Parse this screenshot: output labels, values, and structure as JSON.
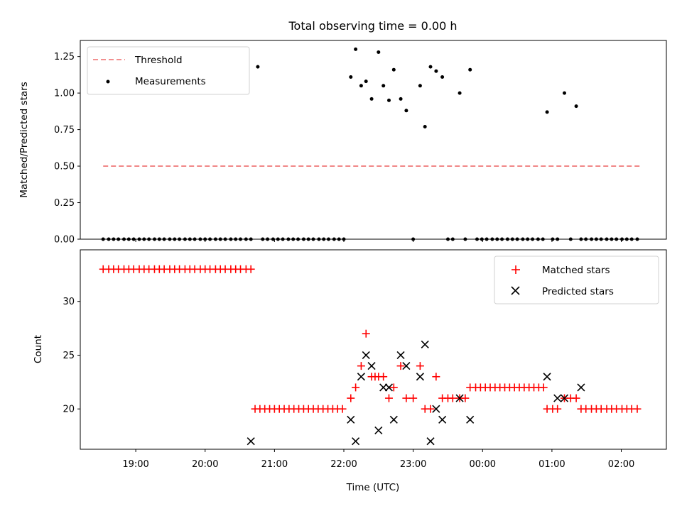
{
  "chart_data": [
    {
      "type": "scatter",
      "title": "Total observing time = 0.00 h",
      "xlabel": "",
      "ylabel": "Matched/Predicted stars",
      "xlim": [
        18.2,
        26.65
      ],
      "ylim": [
        0,
        1.36
      ],
      "yticks": [
        0,
        0.25,
        0.5,
        0.75,
        1.0,
        1.25
      ],
      "ytick_labels": [
        "0.00",
        "0.25",
        "0.50",
        "0.75",
        "1.00",
        "1.25"
      ],
      "xticks": [
        19,
        20,
        21,
        22,
        23,
        24,
        25,
        26
      ],
      "legend": {
        "position": "top-left",
        "entries": [
          {
            "label": "Threshold",
            "marker": "dashed-line",
            "color": "#f08080"
          },
          {
            "label": "Measurements",
            "marker": "dot",
            "color": "#000000"
          }
        ]
      },
      "series": [
        {
          "name": "Threshold",
          "kind": "line",
          "color": "#f08080",
          "x": [
            18.53,
            26.27
          ],
          "y": [
            0.5,
            0.5
          ]
        },
        {
          "name": "Measurements",
          "kind": "scatter",
          "color": "#000000",
          "x": [
            18.53,
            18.61,
            18.68,
            18.75,
            18.83,
            18.9,
            18.97,
            19.05,
            19.12,
            19.19,
            19.27,
            19.34,
            19.41,
            19.49,
            19.56,
            19.63,
            19.71,
            19.78,
            19.85,
            19.93,
            20.0,
            20.07,
            20.15,
            20.22,
            20.29,
            20.37,
            20.44,
            20.51,
            20.59,
            20.66,
            20.76,
            20.83,
            20.9,
            20.98,
            21.05,
            21.12,
            21.2,
            21.27,
            21.34,
            21.42,
            21.49,
            21.56,
            21.64,
            21.71,
            21.78,
            21.86,
            21.93,
            22.0,
            22.1,
            22.17,
            22.25,
            22.32,
            22.4,
            22.5,
            22.57,
            22.65,
            22.72,
            22.82,
            22.9,
            23.0,
            23.1,
            23.17,
            23.25,
            23.33,
            23.42,
            23.5,
            23.57,
            23.67,
            23.75,
            23.82,
            23.92,
            23.99,
            24.06,
            24.14,
            24.21,
            24.28,
            24.36,
            24.43,
            24.5,
            24.58,
            24.65,
            24.72,
            24.8,
            24.87,
            24.93,
            25.01,
            25.08,
            25.18,
            25.27,
            25.35,
            25.42,
            25.49,
            25.57,
            25.64,
            25.71,
            25.79,
            25.86,
            25.93,
            26.01,
            26.08,
            26.15,
            26.23
          ],
          "y": [
            0,
            0,
            0,
            0,
            0,
            0,
            0,
            0,
            0,
            0,
            0,
            0,
            0,
            0,
            0,
            0,
            0,
            0,
            0,
            0,
            0,
            0,
            0,
            0,
            0,
            0,
            0,
            0,
            0,
            0,
            1.18,
            0,
            0,
            0,
            0,
            0,
            0,
            0,
            0,
            0,
            0,
            0,
            0,
            0,
            0,
            0,
            0,
            0,
            1.11,
            1.3,
            1.05,
            1.08,
            0.96,
            1.28,
            1.05,
            0.95,
            1.16,
            0.96,
            0.88,
            0,
            1.05,
            0.77,
            1.18,
            1.15,
            1.11,
            0,
            0,
            1.0,
            0,
            1.16,
            0,
            0,
            0,
            0,
            0,
            0,
            0,
            0,
            0,
            0,
            0,
            0,
            0,
            0,
            0.87,
            0,
            0,
            1.0,
            0,
            0.91,
            0,
            0,
            0,
            0,
            0,
            0,
            0,
            0,
            0,
            0,
            0,
            0
          ]
        }
      ]
    },
    {
      "type": "scatter",
      "title": "",
      "xlabel": "Time (UTC)",
      "ylabel": "Count",
      "xlim": [
        18.2,
        26.65
      ],
      "ylim": [
        16.25,
        34.8
      ],
      "yticks": [
        20,
        25,
        30
      ],
      "ytick_labels": [
        "20",
        "25",
        "30"
      ],
      "xticks": [
        19,
        20,
        21,
        22,
        23,
        24,
        25,
        26
      ],
      "xtick_labels": [
        "19:00",
        "20:00",
        "21:00",
        "22:00",
        "23:00",
        "00:00",
        "01:00",
        "02:00"
      ],
      "legend": {
        "position": "top-right",
        "entries": [
          {
            "label": "Matched stars",
            "marker": "plus",
            "color": "#ff0000"
          },
          {
            "label": "Predicted stars",
            "marker": "x",
            "color": "#000000"
          }
        ]
      },
      "series": [
        {
          "name": "Matched stars",
          "marker": "plus",
          "color": "#ff0000",
          "x": [
            18.53,
            18.61,
            18.68,
            18.75,
            18.83,
            18.9,
            18.97,
            19.05,
            19.12,
            19.19,
            19.27,
            19.34,
            19.41,
            19.49,
            19.56,
            19.63,
            19.71,
            19.78,
            19.85,
            19.93,
            20.0,
            20.07,
            20.15,
            20.22,
            20.29,
            20.37,
            20.44,
            20.51,
            20.59,
            20.66,
            20.72,
            20.79,
            20.86,
            20.93,
            21.0,
            21.07,
            21.14,
            21.21,
            21.28,
            21.35,
            21.42,
            21.49,
            21.56,
            21.63,
            21.7,
            21.77,
            21.84,
            21.91,
            21.98,
            22.1,
            22.17,
            22.25,
            22.32,
            22.4,
            22.45,
            22.5,
            22.57,
            22.65,
            22.72,
            22.82,
            22.9,
            23.0,
            23.1,
            23.17,
            23.25,
            23.33,
            23.42,
            23.5,
            23.57,
            23.67,
            23.75,
            23.82,
            23.9,
            23.97,
            24.04,
            24.11,
            24.18,
            24.25,
            24.32,
            24.39,
            24.46,
            24.53,
            24.6,
            24.67,
            24.74,
            24.81,
            24.88,
            24.93,
            25.01,
            25.08,
            25.18,
            25.27,
            25.35,
            25.42,
            25.49,
            25.57,
            25.64,
            25.71,
            25.79,
            25.86,
            25.93,
            26.01,
            26.08,
            26.15,
            26.23
          ],
          "y": [
            33,
            33,
            33,
            33,
            33,
            33,
            33,
            33,
            33,
            33,
            33,
            33,
            33,
            33,
            33,
            33,
            33,
            33,
            33,
            33,
            33,
            33,
            33,
            33,
            33,
            33,
            33,
            33,
            33,
            33,
            20,
            20,
            20,
            20,
            20,
            20,
            20,
            20,
            20,
            20,
            20,
            20,
            20,
            20,
            20,
            20,
            20,
            20,
            20,
            21,
            22,
            24,
            27,
            23,
            23,
            23,
            23,
            21,
            22,
            24,
            21,
            21,
            24,
            20,
            20,
            23,
            21,
            21,
            21,
            21,
            21,
            22,
            22,
            22,
            22,
            22,
            22,
            22,
            22,
            22,
            22,
            22,
            22,
            22,
            22,
            22,
            22,
            20,
            20,
            20,
            21,
            21,
            21,
            20,
            20,
            20,
            20,
            20,
            20,
            20,
            20,
            20,
            20,
            20,
            20
          ]
        },
        {
          "name": "Predicted stars",
          "marker": "x",
          "color": "#000000",
          "x": [
            20.66,
            22.1,
            22.17,
            22.25,
            22.32,
            22.4,
            22.5,
            22.57,
            22.65,
            22.72,
            22.82,
            22.9,
            23.1,
            23.17,
            23.25,
            23.33,
            23.42,
            23.67,
            23.82,
            24.93,
            25.08,
            25.18,
            25.42
          ],
          "y": [
            17,
            19,
            17,
            23,
            25,
            24,
            18,
            22,
            22,
            19,
            25,
            24,
            23,
            26,
            17,
            20,
            19,
            21,
            19,
            23,
            21,
            21,
            22
          ]
        }
      ]
    }
  ]
}
